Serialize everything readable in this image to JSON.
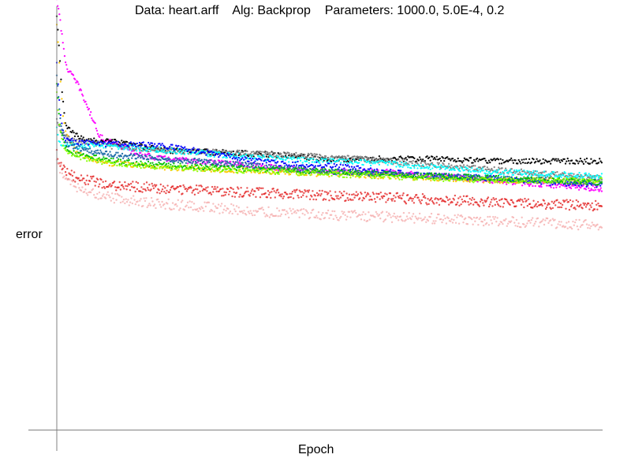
{
  "chart_data": {
    "type": "scatter",
    "title": "Data: heart.arff    Alg: Backprop    Parameters: 1000.0, 5.0E-4, 0.2",
    "xlabel": "Epoch",
    "ylabel": "error",
    "xlim": [
      0,
      1000
    ],
    "ylim": [
      0,
      1
    ],
    "grid": false,
    "legend": "none",
    "x": [
      0,
      5,
      10,
      15,
      20,
      30,
      40,
      60,
      80,
      100,
      150,
      200,
      300,
      400,
      500,
      600,
      700,
      800,
      900,
      1000
    ],
    "series": [
      {
        "color": "#ff00ff",
        "values": [
          1.0,
          0.97,
          0.91,
          0.86,
          0.84,
          0.82,
          0.8,
          0.74,
          0.68,
          0.67,
          0.64,
          0.63,
          0.62,
          0.61,
          0.6,
          0.6,
          0.59,
          0.58,
          0.57,
          0.56
        ]
      },
      {
        "color": "#000000",
        "values": [
          0.96,
          0.87,
          0.78,
          0.72,
          0.7,
          0.69,
          0.68,
          0.675,
          0.67,
          0.67,
          0.66,
          0.65,
          0.645,
          0.64,
          0.63,
          0.63,
          0.63,
          0.625,
          0.625,
          0.625
        ]
      },
      {
        "color": "#ffc800",
        "values": [
          0.94,
          0.85,
          0.75,
          0.7,
          0.68,
          0.66,
          0.64,
          0.63,
          0.625,
          0.62,
          0.615,
          0.61,
          0.605,
          0.6,
          0.595,
          0.59,
          0.585,
          0.58,
          0.58,
          0.575
        ]
      },
      {
        "color": "#808080",
        "values": [
          0.72,
          0.7,
          0.69,
          0.685,
          0.68,
          0.675,
          0.67,
          0.67,
          0.665,
          0.66,
          0.655,
          0.65,
          0.645,
          0.64,
          0.635,
          0.625,
          0.615,
          0.605,
          0.595,
          0.585
        ]
      },
      {
        "color": "#00ffff",
        "values": [
          0.7,
          0.67,
          0.665,
          0.665,
          0.665,
          0.665,
          0.66,
          0.66,
          0.66,
          0.66,
          0.655,
          0.65,
          0.64,
          0.63,
          0.625,
          0.62,
          0.61,
          0.6,
          0.595,
          0.59
        ]
      },
      {
        "color": "#0000ff",
        "values": [
          0.85,
          0.76,
          0.7,
          0.68,
          0.675,
          0.67,
          0.67,
          0.668,
          0.665,
          0.665,
          0.663,
          0.66,
          0.64,
          0.62,
          0.615,
          0.6,
          0.59,
          0.585,
          0.575,
          0.57
        ]
      },
      {
        "color": "#1c6aa8",
        "values": [
          0.82,
          0.74,
          0.69,
          0.67,
          0.665,
          0.66,
          0.655,
          0.648,
          0.645,
          0.64,
          0.635,
          0.63,
          0.62,
          0.61,
          0.6,
          0.595,
          0.59,
          0.585,
          0.58,
          0.575
        ]
      },
      {
        "color": "#00c000",
        "values": [
          0.8,
          0.72,
          0.68,
          0.66,
          0.65,
          0.645,
          0.64,
          0.635,
          0.63,
          0.625,
          0.62,
          0.615,
          0.61,
          0.605,
          0.6,
          0.595,
          0.59,
          0.585,
          0.58,
          0.575
        ]
      },
      {
        "color": "#88ff00",
        "values": [
          0.78,
          0.7,
          0.67,
          0.65,
          0.645,
          0.64,
          0.635,
          0.63,
          0.625,
          0.62,
          0.615,
          0.61,
          0.605,
          0.6,
          0.595,
          0.59,
          0.585,
          0.58,
          0.58,
          0.58
        ]
      },
      {
        "color": "#e01010",
        "values": [
          0.64,
          0.62,
          0.61,
          0.6,
          0.595,
          0.59,
          0.585,
          0.58,
          0.575,
          0.57,
          0.565,
          0.56,
          0.555,
          0.55,
          0.545,
          0.54,
          0.535,
          0.53,
          0.525,
          0.52
        ]
      },
      {
        "color": "#f4a6a6",
        "values": [
          0.64,
          0.61,
          0.6,
          0.59,
          0.58,
          0.57,
          0.56,
          0.55,
          0.545,
          0.54,
          0.53,
          0.525,
          0.515,
          0.505,
          0.5,
          0.495,
          0.49,
          0.485,
          0.48,
          0.475
        ]
      }
    ]
  }
}
